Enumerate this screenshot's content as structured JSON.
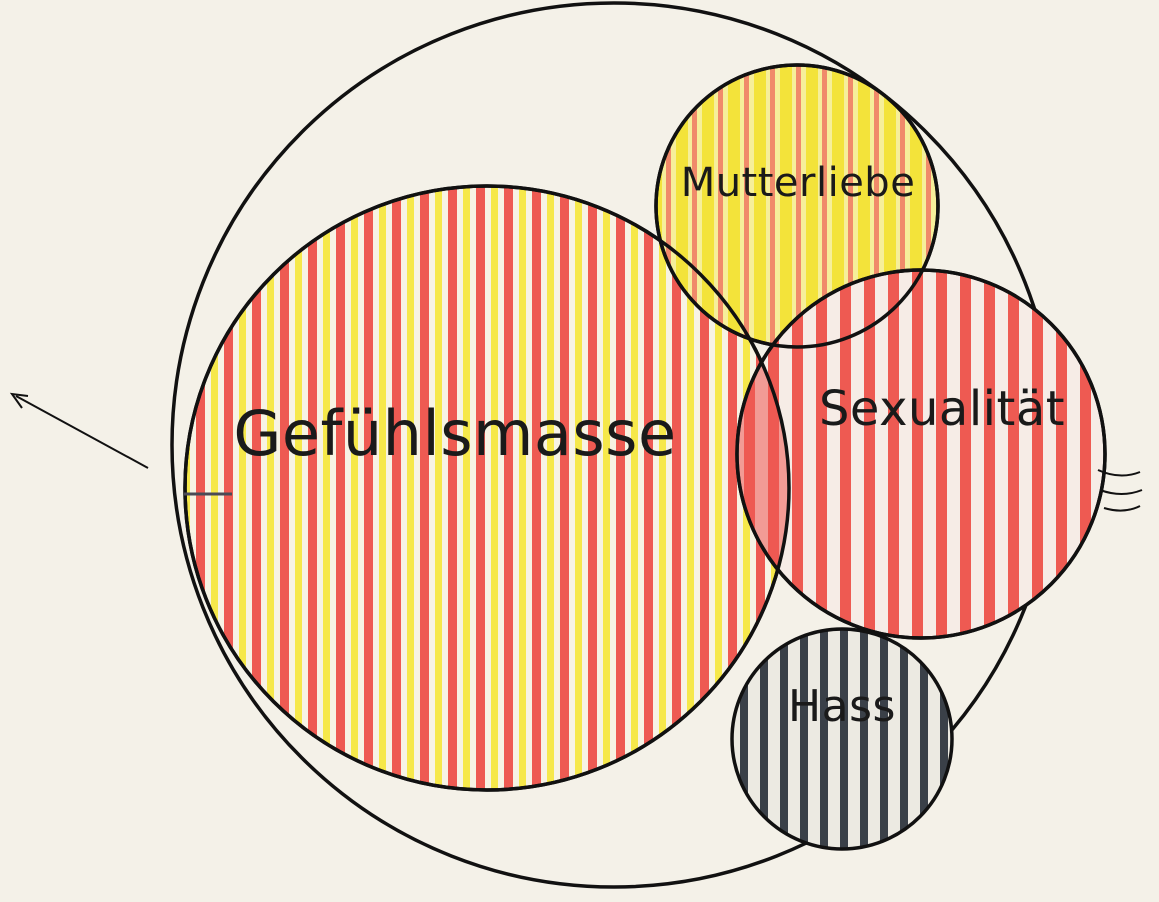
{
  "diagram": {
    "colors": {
      "background": "#f4f1e8",
      "line": "#111111",
      "red_stripe": "#ee5a52",
      "yellow_stripe": "#f6e84a",
      "dark_stripe": "#3a4048"
    },
    "circles": [
      {
        "id": "gefuehlsmasse",
        "label": "Gefühlsmasse",
        "fill": "red-yellow-stripes"
      },
      {
        "id": "mutterliebe",
        "label": "Mutterliebe",
        "fill": "yellow-red-stripes"
      },
      {
        "id": "sexualitaet",
        "label": "Sexualität",
        "fill": "red-stripes"
      },
      {
        "id": "hass",
        "label": "Hass",
        "fill": "dark-stripes"
      }
    ]
  }
}
